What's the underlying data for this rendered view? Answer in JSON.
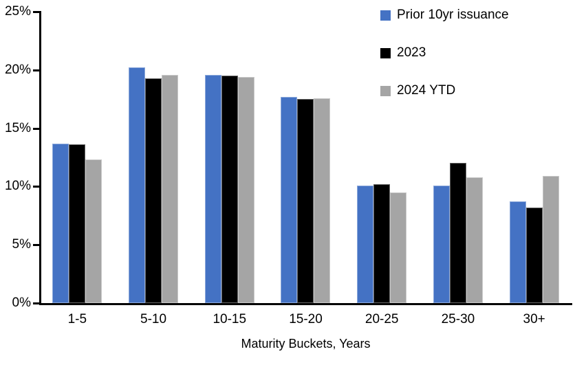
{
  "chart_data": {
    "type": "bar",
    "title": "",
    "xlabel": "Maturity Buckets, Years",
    "ylabel": "",
    "categories": [
      "1-5",
      "5-10",
      "10-15",
      "15-20",
      "20-25",
      "25-30",
      "30+"
    ],
    "series": [
      {
        "name": "Prior 10yr issuance",
        "color": "#4472C4",
        "values": [
          13.7,
          20.2,
          19.6,
          17.7,
          10.1,
          10.1,
          8.7
        ]
      },
      {
        "name": "2023",
        "color": "#000000",
        "values": [
          13.6,
          19.3,
          19.5,
          17.5,
          10.2,
          12.0,
          8.2
        ]
      },
      {
        "name": "2024 YTD",
        "color": "#A5A5A5",
        "values": [
          12.3,
          19.6,
          19.4,
          17.6,
          9.5,
          10.8,
          10.9
        ]
      }
    ],
    "ylim": [
      0,
      25
    ],
    "ytick_step": 5,
    "ytick_labels": [
      "0%",
      "5%",
      "10%",
      "15%",
      "20%",
      "25%"
    ],
    "grid": false,
    "legend_position": "top-right",
    "axis_color": "#000000",
    "background_color": "#FFFFFF"
  }
}
